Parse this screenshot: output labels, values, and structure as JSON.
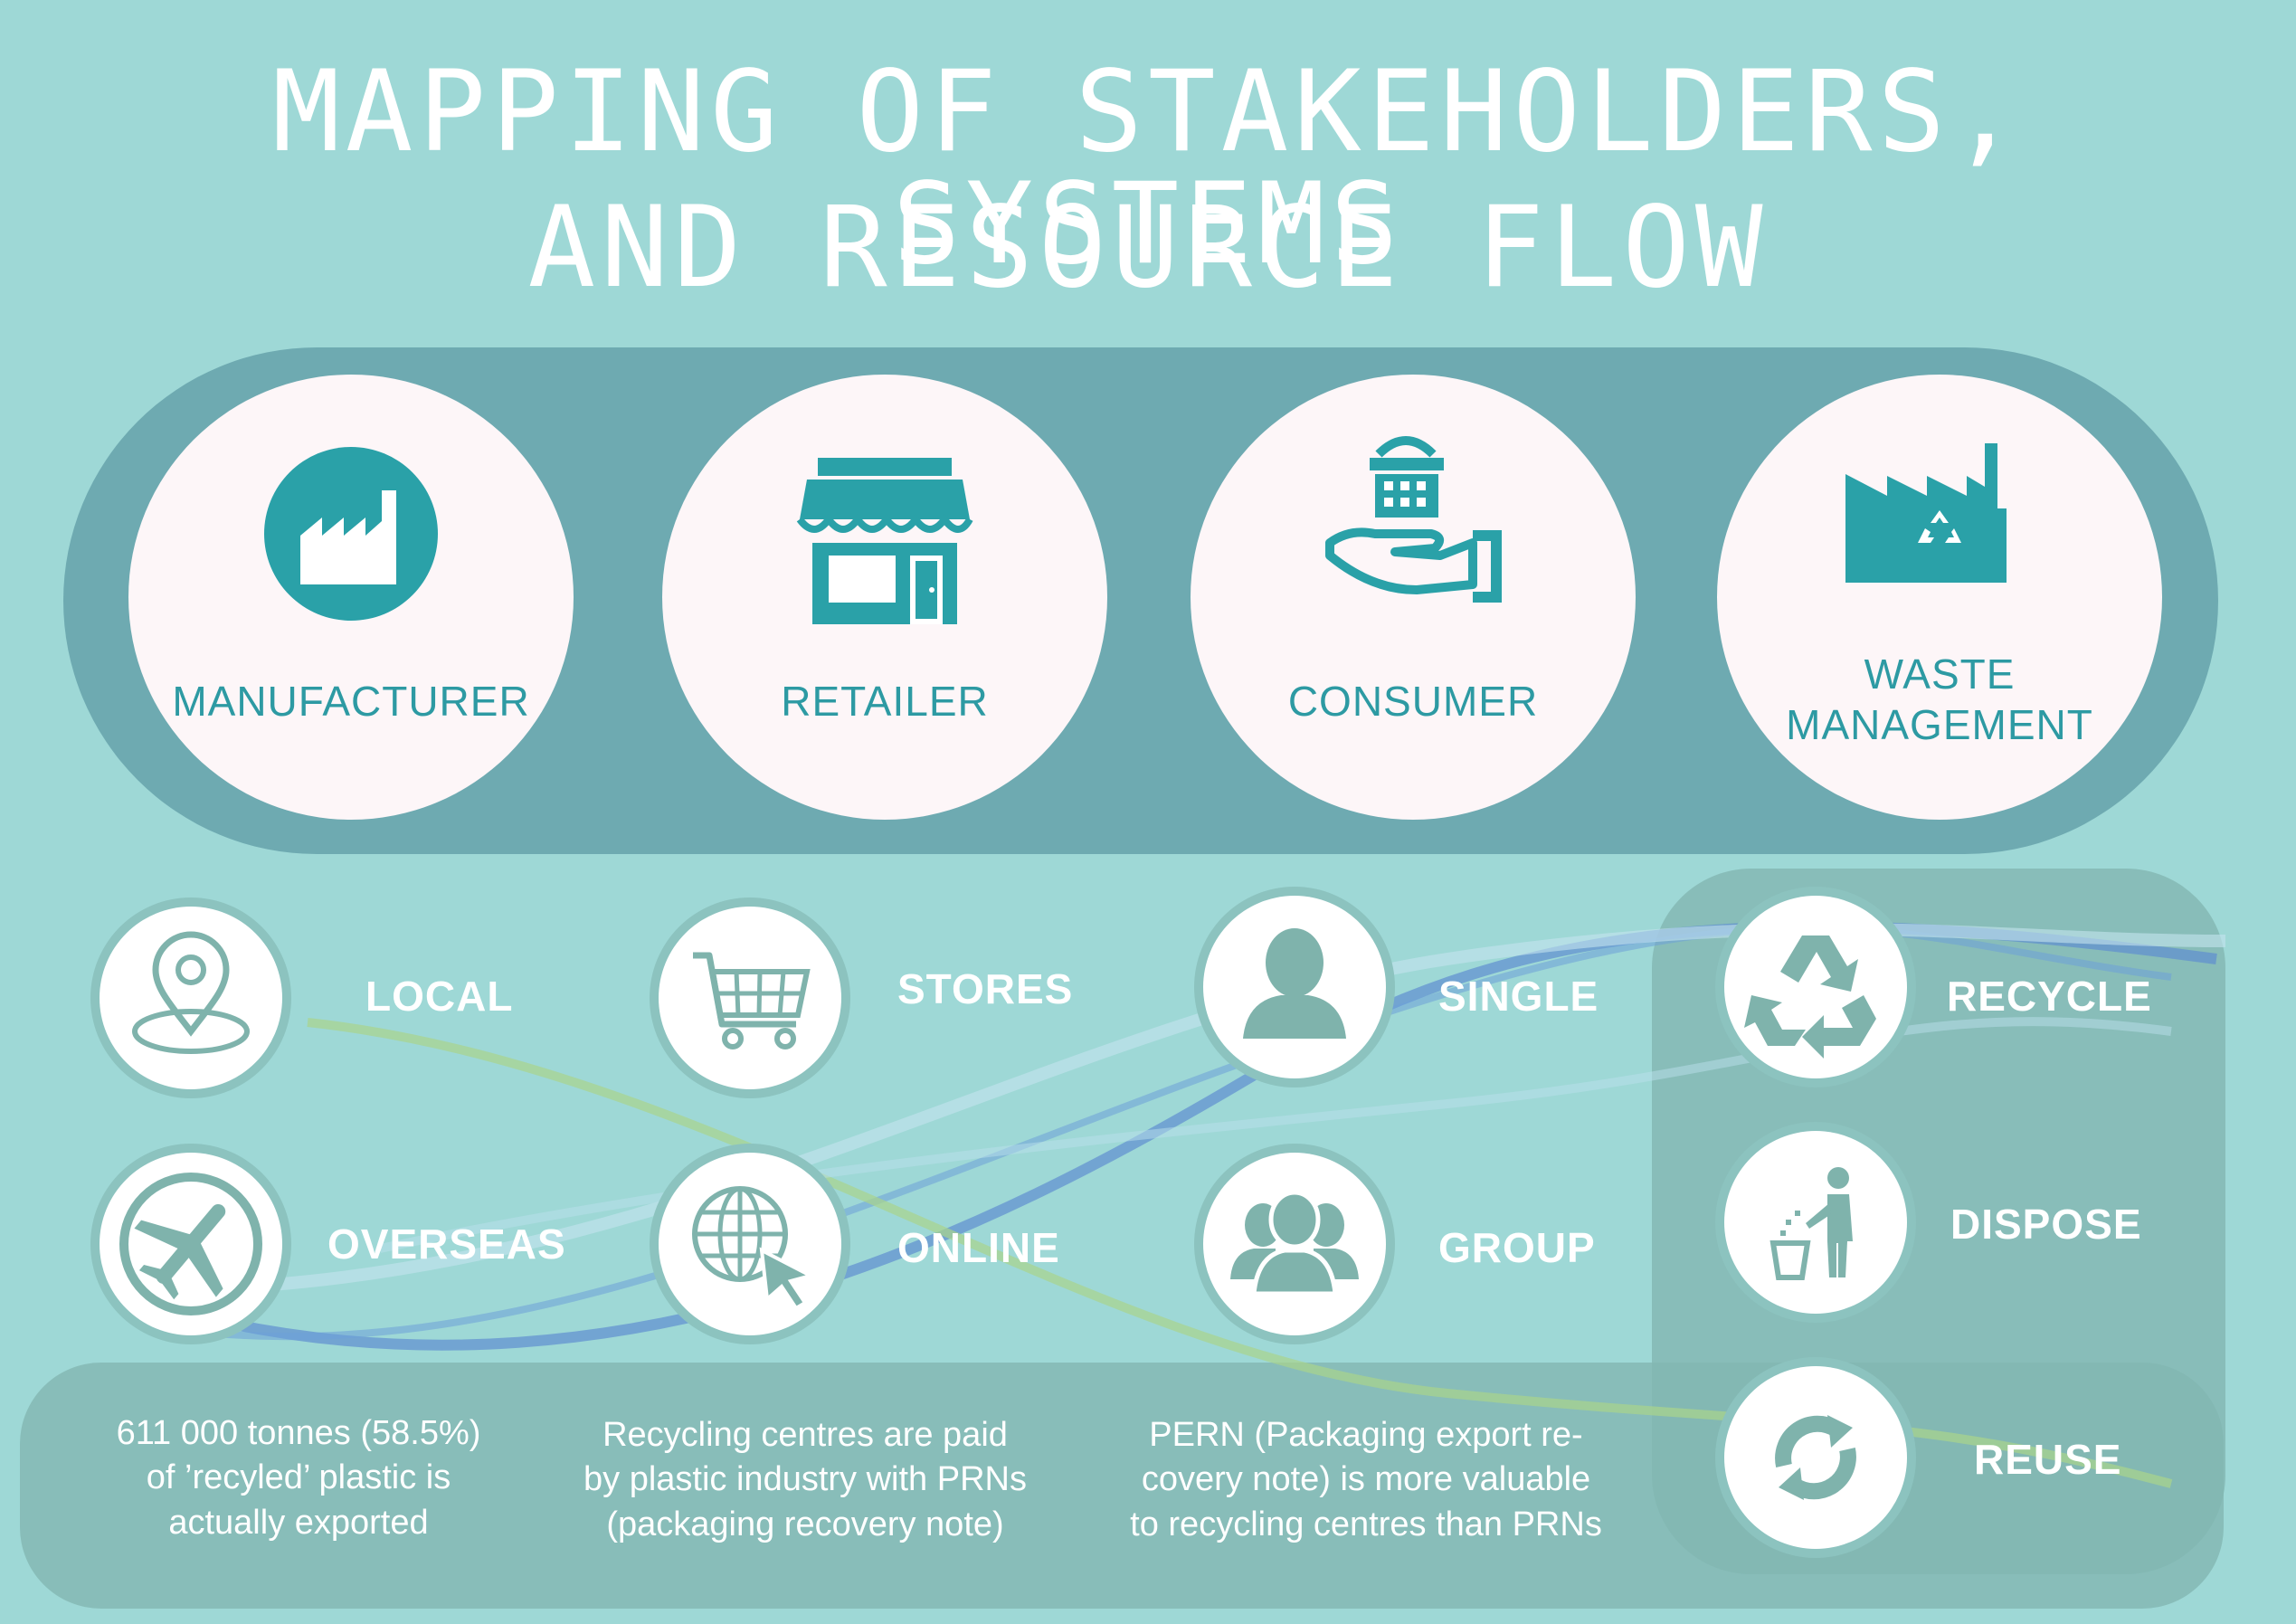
{
  "title": {
    "line1": "MAPPING OF STAKEHOLDERS, SYSTEMS",
    "line2": "AND RESOURCE FLOW"
  },
  "stakeholders": [
    {
      "label": "MANUFACTURER",
      "icon": "factory-icon"
    },
    {
      "label": "RETAILER",
      "icon": "storefront-icon"
    },
    {
      "label": "CONSUMER",
      "icon": "hand-basket-icon"
    },
    {
      "label_line1": "WASTE",
      "label_line2": "MANAGEMENT",
      "icon": "recycling-factory-icon"
    }
  ],
  "options": {
    "manufacturer": [
      {
        "label": "LOCAL",
        "icon": "location-pin-icon"
      },
      {
        "label": "OVERSEAS",
        "icon": "airplane-icon"
      }
    ],
    "retailer": [
      {
        "label": "STORES",
        "icon": "shopping-cart-icon"
      },
      {
        "label": "ONLINE",
        "icon": "globe-cursor-icon"
      }
    ],
    "consumer": [
      {
        "label": "SINGLE",
        "icon": "person-icon"
      },
      {
        "label": "GROUP",
        "icon": "group-icon"
      }
    ],
    "waste": [
      {
        "label": "RECYCLE",
        "icon": "recycle-icon"
      },
      {
        "label": "DISPOSE",
        "icon": "trash-dispose-icon"
      },
      {
        "label": "REUSE",
        "icon": "reuse-arrows-icon"
      }
    ]
  },
  "notes": [
    {
      "l1": "611 000 tonnes (58.5%)",
      "l2": "of ’recyled’ plastic is",
      "l3": "actually exported"
    },
    {
      "l1": "Recycling centres are paid",
      "l2": "by plastic industry with PRNs",
      "l3": "(packaging recovery note)"
    },
    {
      "l1": "PERN (Packaging export re-",
      "l2": "covery note) is more valuable",
      "l3": "to recycling centres than PRNs"
    }
  ],
  "colors": {
    "background": "#9ed8d6",
    "band": "#6eaab1",
    "teal_icon": "#2aa1a8",
    "grey_icon": "#7fb3ac",
    "flow_blue": "#5f8fd0",
    "flow_green": "#a9d48b"
  }
}
